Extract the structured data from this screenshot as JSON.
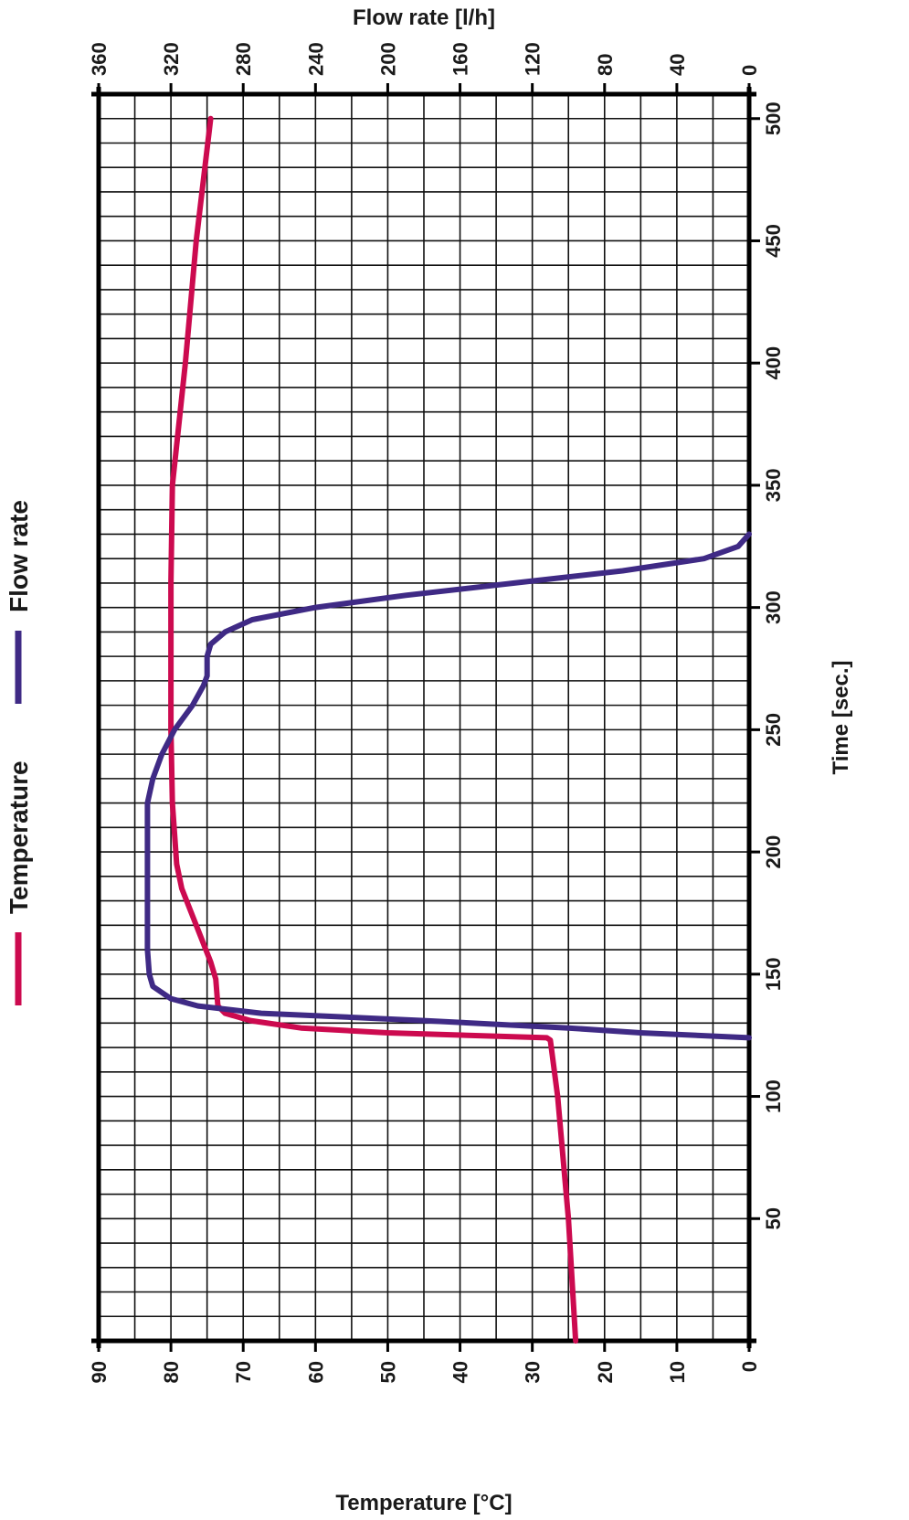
{
  "chart_data": {
    "type": "line",
    "orientation": "rotated 90° clockwise: time axis vertical on right, value axes horizontal (top and bottom)",
    "time_axis": {
      "label": "Time [sec.]",
      "range": [
        0,
        510
      ],
      "ticks": [
        "50",
        "100",
        "150",
        "200",
        "250",
        "300",
        "350",
        "400",
        "450",
        "500"
      ]
    },
    "temperature_axis": {
      "label": "Temperature [°C]",
      "range": [
        0,
        90
      ],
      "reversed": true,
      "ticks": [
        "90",
        "80",
        "70",
        "60",
        "50",
        "40",
        "30",
        "20",
        "10",
        "0"
      ]
    },
    "flow_axis": {
      "label": "Flow rate [l/h]",
      "range": [
        0,
        360
      ],
      "reversed": true,
      "ticks": [
        "360",
        "320",
        "280",
        "240",
        "200",
        "160",
        "120",
        "80",
        "40",
        "0"
      ]
    },
    "grid": true,
    "legend": {
      "placement": "left"
    },
    "series": [
      {
        "name": "Temperature",
        "axis": "temperature",
        "color": "#cc0a4f",
        "points": [
          [
            0,
            24
          ],
          [
            50,
            25
          ],
          [
            100,
            26.5
          ],
          [
            123,
            27.5
          ],
          [
            124,
            28
          ],
          [
            126,
            50
          ],
          [
            128,
            62
          ],
          [
            131,
            69
          ],
          [
            134,
            72.5
          ],
          [
            137,
            73.5
          ],
          [
            148,
            73.8
          ],
          [
            155,
            74.5
          ],
          [
            170,
            76.5
          ],
          [
            185,
            78.5
          ],
          [
            195,
            79.2
          ],
          [
            220,
            79.8
          ],
          [
            250,
            80
          ],
          [
            280,
            80
          ],
          [
            310,
            80
          ],
          [
            350,
            79.8
          ],
          [
            400,
            78
          ],
          [
            450,
            76.5
          ],
          [
            500,
            74.5
          ]
        ]
      },
      {
        "name": "Flow rate",
        "axis": "flow",
        "color": "#3f2a85",
        "points": [
          [
            124,
            0
          ],
          [
            126,
            60
          ],
          [
            128,
            100
          ],
          [
            131,
            180
          ],
          [
            134,
            270
          ],
          [
            137,
            305
          ],
          [
            140,
            320
          ],
          [
            145,
            330
          ],
          [
            150,
            332
          ],
          [
            160,
            333
          ],
          [
            200,
            333
          ],
          [
            220,
            333
          ],
          [
            230,
            330
          ],
          [
            240,
            325
          ],
          [
            250,
            318
          ],
          [
            260,
            308
          ],
          [
            268,
            302
          ],
          [
            272,
            300
          ],
          [
            280,
            300
          ],
          [
            285,
            298
          ],
          [
            290,
            290
          ],
          [
            295,
            275
          ],
          [
            300,
            240
          ],
          [
            305,
            190
          ],
          [
            310,
            130
          ],
          [
            315,
            70
          ],
          [
            320,
            25
          ],
          [
            325,
            6
          ],
          [
            330,
            0
          ]
        ]
      }
    ]
  }
}
